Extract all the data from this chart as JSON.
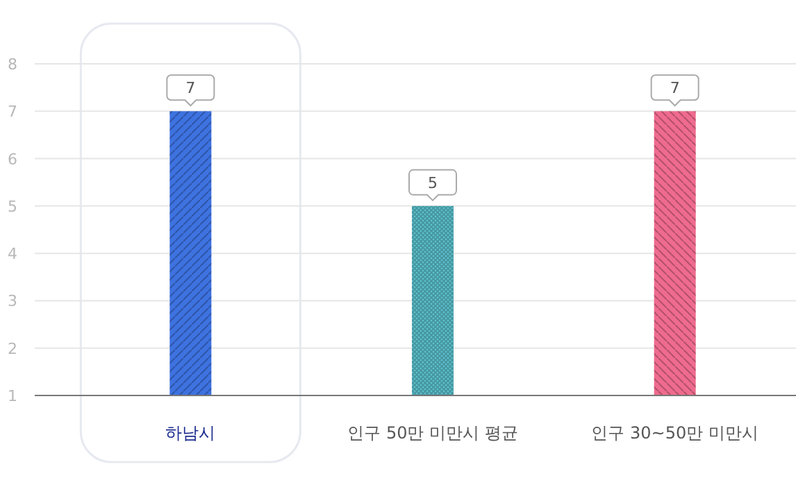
{
  "chart_data": {
    "type": "bar",
    "categories": [
      "하남시",
      "인구 50만 미만시 평균",
      "인구 30~50만 미만시"
    ],
    "values": [
      7,
      5,
      7
    ],
    "colors": [
      "#3d72e0",
      "#5fc9d6",
      "#ef6b8e"
    ],
    "ylim": [
      1,
      8
    ],
    "yticks": [
      1,
      2,
      3,
      4,
      5,
      6,
      7,
      8
    ],
    "grid": "y",
    "data_labels": true,
    "bands": [
      {
        "axis": "x",
        "from": "하남시",
        "to": "하남시",
        "color": "#e6e9ef"
      }
    ]
  }
}
